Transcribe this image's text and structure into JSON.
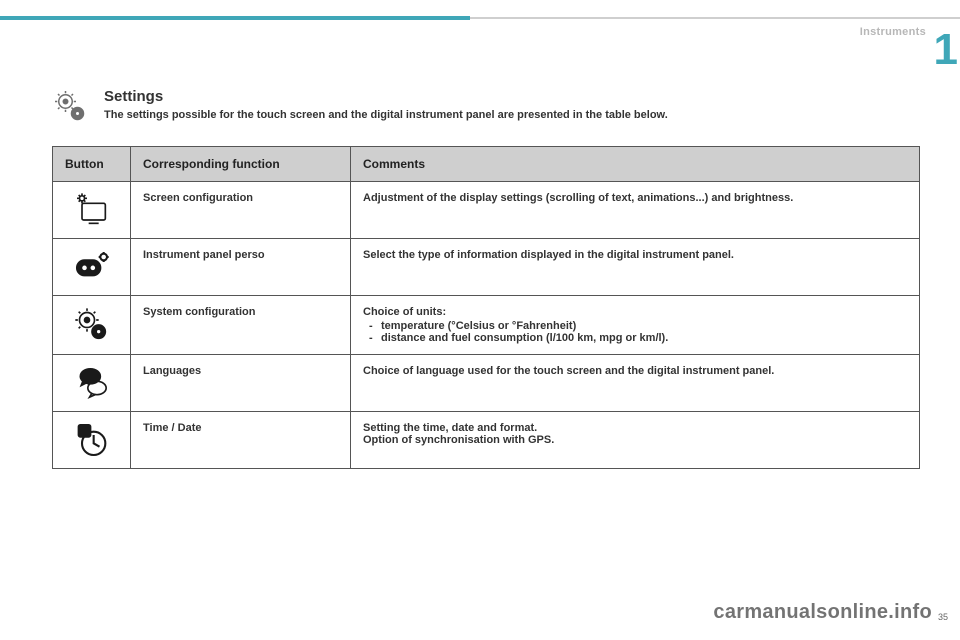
{
  "header": {
    "section_label": "Instruments",
    "chapter_number": "1"
  },
  "intro": {
    "title": "Settings",
    "subtitle": "The settings possible for the touch screen and the digital instrument panel are presented in the table below."
  },
  "table": {
    "columns": [
      "Button",
      "Corresponding function",
      "Comments"
    ],
    "header_bg": "#cfcfcf",
    "border_color": "#555555",
    "rows": [
      {
        "icon": "screen-brightness-icon",
        "function": "Screen configuration",
        "comment_text": "Adjustment of the display settings (scrolling of text, animations...) and brightness.",
        "comment_items": []
      },
      {
        "icon": "instrument-panel-icon",
        "function": "Instrument panel perso",
        "comment_text": "Select the type of information displayed in the digital instrument panel.",
        "comment_items": []
      },
      {
        "icon": "system-config-icon",
        "function": "System configuration",
        "comment_text": "Choice of units:",
        "comment_items": [
          "temperature (°Celsius or °Fahrenheit)",
          "distance and fuel consumption (l/100 km,  mpg or km/l)."
        ]
      },
      {
        "icon": "languages-icon",
        "function": "Languages",
        "comment_text": "Choice of language used for the touch screen and the digital instrument panel.",
        "comment_items": []
      },
      {
        "icon": "time-date-icon",
        "function": "Time / Date",
        "comment_text": "Setting the time, date and format.\nOption of synchronisation with GPS.",
        "comment_items": []
      }
    ]
  },
  "footer": {
    "watermark": "carmanualsonline.info",
    "page": "35"
  },
  "style": {
    "accent_color": "#3fa7b8",
    "text_color": "#333333",
    "muted_color": "#b7b7b7"
  }
}
